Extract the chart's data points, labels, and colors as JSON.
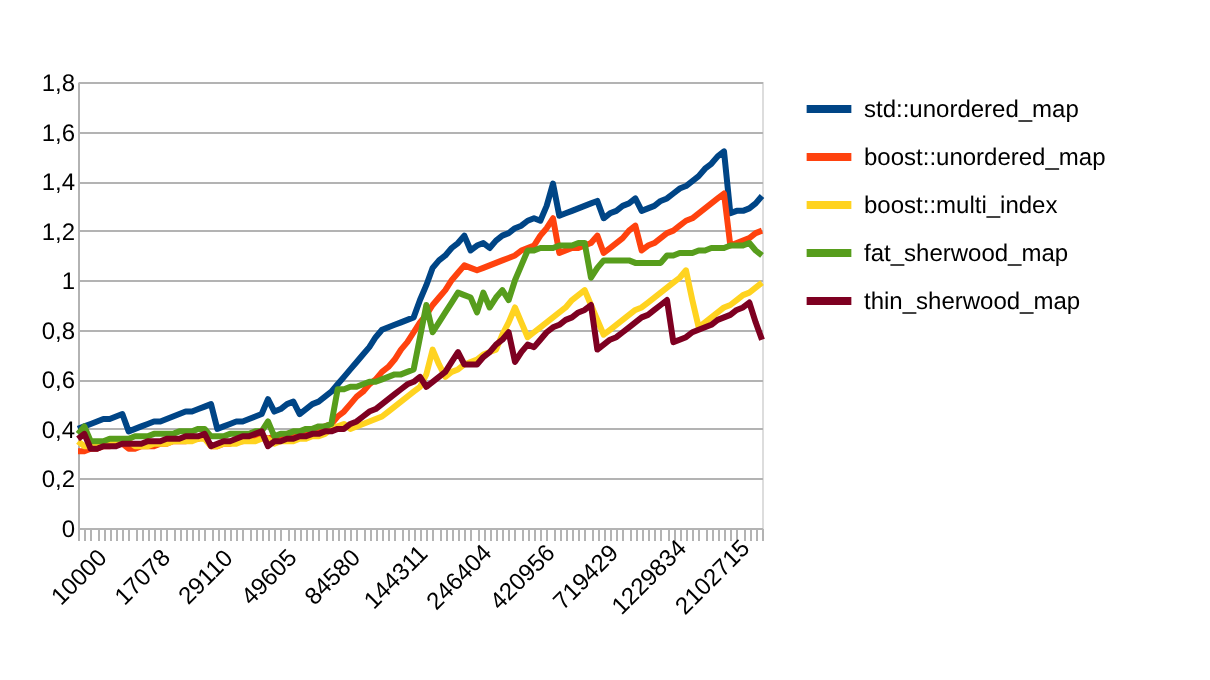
{
  "chart_data": {
    "type": "line",
    "categories": [
      "10000",
      null,
      null,
      null,
      null,
      null,
      null,
      null,
      null,
      null,
      "17078",
      null,
      null,
      null,
      null,
      null,
      null,
      null,
      null,
      null,
      "29110",
      null,
      null,
      null,
      null,
      null,
      null,
      null,
      null,
      null,
      "49605",
      null,
      null,
      null,
      null,
      null,
      null,
      null,
      null,
      null,
      "84580",
      null,
      null,
      null,
      null,
      null,
      null,
      null,
      null,
      null,
      "144311",
      null,
      null,
      null,
      null,
      null,
      null,
      null,
      null,
      null,
      "246404",
      null,
      null,
      null,
      null,
      null,
      null,
      null,
      null,
      null,
      "420956",
      null,
      null,
      null,
      null,
      null,
      null,
      null,
      null,
      null,
      "719429",
      null,
      null,
      null,
      null,
      null,
      null,
      null,
      null,
      null,
      "1229834",
      null,
      null,
      null,
      null,
      null,
      null,
      null,
      null,
      null,
      "2102715",
      null,
      null,
      null,
      null,
      null,
      null,
      null,
      null
    ],
    "ylim": [
      0,
      1.8
    ],
    "yticks": [
      0,
      {
        "value": 0.2,
        "label": "0,2"
      },
      {
        "value": 0.4,
        "label": "0,4"
      },
      {
        "value": 0.6,
        "label": "0,6"
      },
      {
        "value": 0.8,
        "label": "0,8"
      },
      1,
      {
        "value": 1.2,
        "label": "1,2"
      },
      {
        "value": 1.4,
        "label": "1,4"
      },
      {
        "value": 1.6,
        "label": "1,6"
      },
      {
        "value": 1.8,
        "label": "1,8"
      }
    ],
    "grid": "y",
    "legend": "right",
    "marker": "none",
    "line_style": "solid",
    "series": [
      {
        "name": "std::unordered_map",
        "color": "#004586",
        "values": [
          0.4,
          0.41,
          0.42,
          0.43,
          0.44,
          0.44,
          0.45,
          0.46,
          0.39,
          0.4,
          0.41,
          0.42,
          0.43,
          0.43,
          0.44,
          0.45,
          0.46,
          0.47,
          0.47,
          0.48,
          0.49,
          0.5,
          0.4,
          0.41,
          0.42,
          0.43,
          0.43,
          0.44,
          0.45,
          0.46,
          0.52,
          0.47,
          0.48,
          0.5,
          0.51,
          0.46,
          0.48,
          0.5,
          0.51,
          0.53,
          0.55,
          0.58,
          0.61,
          0.64,
          0.67,
          0.7,
          0.73,
          0.77,
          0.8,
          0.81,
          0.82,
          0.83,
          0.84,
          0.85,
          0.92,
          0.98,
          1.05,
          1.08,
          1.1,
          1.13,
          1.15,
          1.18,
          1.12,
          1.14,
          1.15,
          1.13,
          1.16,
          1.18,
          1.19,
          1.21,
          1.22,
          1.24,
          1.25,
          1.24,
          1.3,
          1.39,
          1.26,
          1.27,
          1.28,
          1.29,
          1.3,
          1.31,
          1.32,
          1.25,
          1.27,
          1.28,
          1.3,
          1.31,
          1.33,
          1.28,
          1.29,
          1.3,
          1.32,
          1.33,
          1.35,
          1.37,
          1.38,
          1.4,
          1.42,
          1.45,
          1.47,
          1.5,
          1.52,
          1.27,
          1.28,
          1.28,
          1.29,
          1.31,
          1.34
        ]
      },
      {
        "name": "boost::unordered_map",
        "color": "#ff420e",
        "values": [
          0.31,
          0.31,
          0.32,
          0.32,
          0.33,
          0.33,
          0.34,
          0.34,
          0.32,
          0.32,
          0.33,
          0.33,
          0.33,
          0.34,
          0.34,
          0.35,
          0.35,
          0.35,
          0.36,
          0.36,
          0.37,
          0.33,
          0.33,
          0.34,
          0.34,
          0.35,
          0.35,
          0.36,
          0.36,
          0.37,
          0.36,
          0.37,
          0.37,
          0.38,
          0.38,
          0.38,
          0.39,
          0.39,
          0.4,
          0.41,
          0.42,
          0.45,
          0.47,
          0.5,
          0.53,
          0.55,
          0.58,
          0.6,
          0.63,
          0.65,
          0.68,
          0.72,
          0.75,
          0.79,
          0.83,
          0.86,
          0.9,
          0.93,
          0.96,
          1.0,
          1.03,
          1.06,
          1.05,
          1.04,
          1.05,
          1.06,
          1.07,
          1.08,
          1.09,
          1.1,
          1.12,
          1.13,
          1.14,
          1.18,
          1.21,
          1.25,
          1.11,
          1.12,
          1.13,
          1.13,
          1.14,
          1.15,
          1.18,
          1.11,
          1.13,
          1.15,
          1.17,
          1.2,
          1.22,
          1.12,
          1.14,
          1.15,
          1.17,
          1.19,
          1.2,
          1.22,
          1.24,
          1.25,
          1.27,
          1.29,
          1.31,
          1.33,
          1.35,
          1.14,
          1.15,
          1.16,
          1.17,
          1.19,
          1.2
        ]
      },
      {
        "name": "boost::multi_index",
        "color": "#ffd320",
        "values": [
          0.35,
          0.33,
          0.33,
          0.33,
          0.34,
          0.34,
          0.34,
          0.35,
          0.35,
          0.33,
          0.33,
          0.33,
          0.34,
          0.34,
          0.34,
          0.35,
          0.35,
          0.35,
          0.35,
          0.36,
          0.36,
          0.33,
          0.33,
          0.34,
          0.34,
          0.34,
          0.35,
          0.35,
          0.35,
          0.36,
          0.36,
          0.34,
          0.35,
          0.35,
          0.35,
          0.36,
          0.36,
          0.37,
          0.37,
          0.38,
          0.4,
          0.41,
          0.42,
          0.4,
          0.41,
          0.42,
          0.43,
          0.44,
          0.45,
          0.47,
          0.49,
          0.51,
          0.53,
          0.55,
          0.57,
          0.62,
          0.72,
          0.66,
          0.61,
          0.63,
          0.64,
          0.66,
          0.67,
          0.68,
          0.7,
          0.71,
          0.72,
          0.78,
          0.83,
          0.89,
          0.83,
          0.77,
          0.79,
          0.81,
          0.83,
          0.85,
          0.87,
          0.89,
          0.92,
          0.94,
          0.96,
          0.9,
          0.84,
          0.78,
          0.8,
          0.82,
          0.84,
          0.86,
          0.88,
          0.89,
          0.91,
          0.93,
          0.95,
          0.97,
          0.99,
          1.01,
          1.04,
          0.92,
          0.81,
          0.83,
          0.85,
          0.87,
          0.89,
          0.9,
          0.92,
          0.94,
          0.95,
          0.97,
          0.99
        ]
      },
      {
        "name": "fat_sherwood_map",
        "color": "#579d1c",
        "values": [
          0.38,
          0.41,
          0.35,
          0.35,
          0.35,
          0.36,
          0.36,
          0.36,
          0.36,
          0.37,
          0.37,
          0.37,
          0.38,
          0.38,
          0.38,
          0.38,
          0.39,
          0.39,
          0.39,
          0.4,
          0.4,
          0.37,
          0.37,
          0.37,
          0.38,
          0.38,
          0.38,
          0.38,
          0.39,
          0.39,
          0.43,
          0.37,
          0.38,
          0.38,
          0.39,
          0.39,
          0.4,
          0.4,
          0.41,
          0.41,
          0.42,
          0.56,
          0.56,
          0.57,
          0.57,
          0.58,
          0.59,
          0.59,
          0.6,
          0.61,
          0.62,
          0.62,
          0.63,
          0.64,
          0.77,
          0.9,
          0.79,
          0.83,
          0.87,
          0.91,
          0.95,
          0.94,
          0.93,
          0.87,
          0.95,
          0.89,
          0.93,
          0.96,
          0.92,
          1.0,
          1.06,
          1.12,
          1.12,
          1.13,
          1.13,
          1.13,
          1.14,
          1.14,
          1.14,
          1.15,
          1.15,
          1.01,
          1.05,
          1.08,
          1.08,
          1.08,
          1.08,
          1.08,
          1.07,
          1.07,
          1.07,
          1.07,
          1.07,
          1.1,
          1.1,
          1.11,
          1.11,
          1.11,
          1.12,
          1.12,
          1.13,
          1.13,
          1.13,
          1.14,
          1.14,
          1.14,
          1.15,
          1.12,
          1.1
        ]
      },
      {
        "name": "thin_sherwood_map",
        "color": "#7e0021",
        "values": [
          0.36,
          0.38,
          0.32,
          0.32,
          0.33,
          0.33,
          0.33,
          0.34,
          0.34,
          0.34,
          0.34,
          0.35,
          0.35,
          0.35,
          0.36,
          0.36,
          0.36,
          0.37,
          0.37,
          0.37,
          0.38,
          0.33,
          0.34,
          0.35,
          0.35,
          0.36,
          0.37,
          0.37,
          0.38,
          0.39,
          0.33,
          0.35,
          0.35,
          0.36,
          0.36,
          0.37,
          0.37,
          0.38,
          0.38,
          0.39,
          0.39,
          0.4,
          0.4,
          0.42,
          0.43,
          0.45,
          0.47,
          0.48,
          0.5,
          0.52,
          0.54,
          0.56,
          0.58,
          0.59,
          0.61,
          0.57,
          0.59,
          0.61,
          0.63,
          0.67,
          0.71,
          0.66,
          0.66,
          0.66,
          0.69,
          0.71,
          0.74,
          0.76,
          0.79,
          0.67,
          0.71,
          0.74,
          0.73,
          0.76,
          0.79,
          0.81,
          0.82,
          0.84,
          0.85,
          0.87,
          0.88,
          0.9,
          0.72,
          0.74,
          0.76,
          0.77,
          0.79,
          0.81,
          0.83,
          0.85,
          0.86,
          0.88,
          0.9,
          0.92,
          0.75,
          0.76,
          0.77,
          0.79,
          0.8,
          0.81,
          0.82,
          0.84,
          0.85,
          0.86,
          0.88,
          0.89,
          0.91,
          0.83,
          0.76
        ]
      }
    ]
  }
}
